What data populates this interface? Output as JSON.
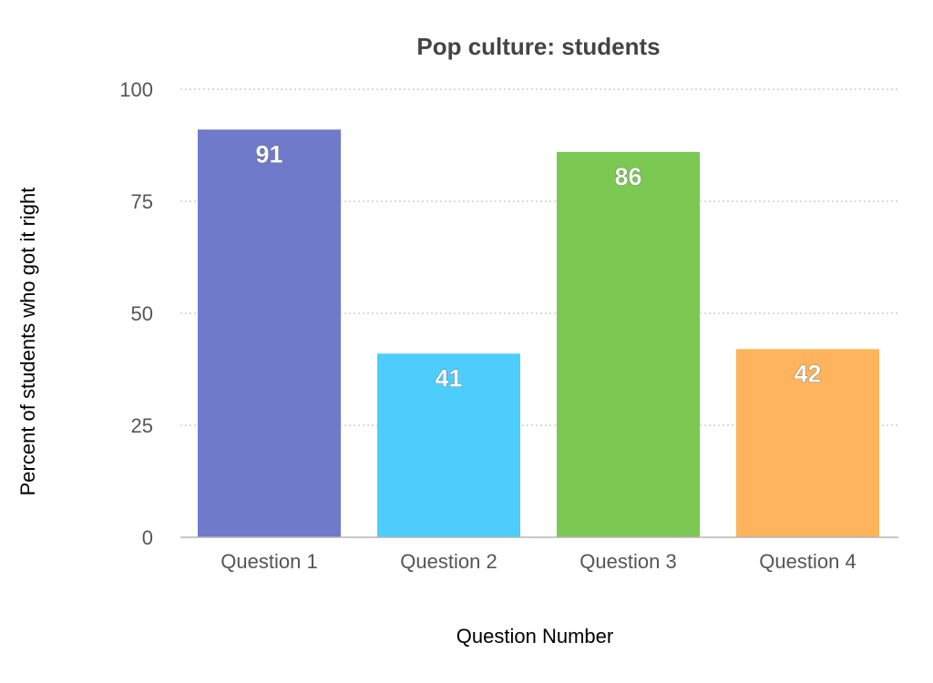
{
  "chart_data": {
    "type": "bar",
    "title": "Pop culture: students",
    "xlabel": "Question Number",
    "ylabel": "Percent of students who got it right",
    "categories": [
      "Question 1",
      "Question 2",
      "Question 3",
      "Question 4"
    ],
    "values": [
      91,
      41,
      86,
      42
    ],
    "data_labels": [
      "91",
      "41",
      "86",
      "42"
    ],
    "colors": [
      "#6f7acb",
      "#4dcdfc",
      "#7bc852",
      "#fdb45c"
    ],
    "ylim": [
      0,
      100
    ],
    "yticks": [
      0,
      25,
      50,
      75,
      100
    ],
    "ytick_labels": [
      "0",
      "25",
      "50",
      "75",
      "100"
    ],
    "grid": true,
    "legend": "none"
  }
}
